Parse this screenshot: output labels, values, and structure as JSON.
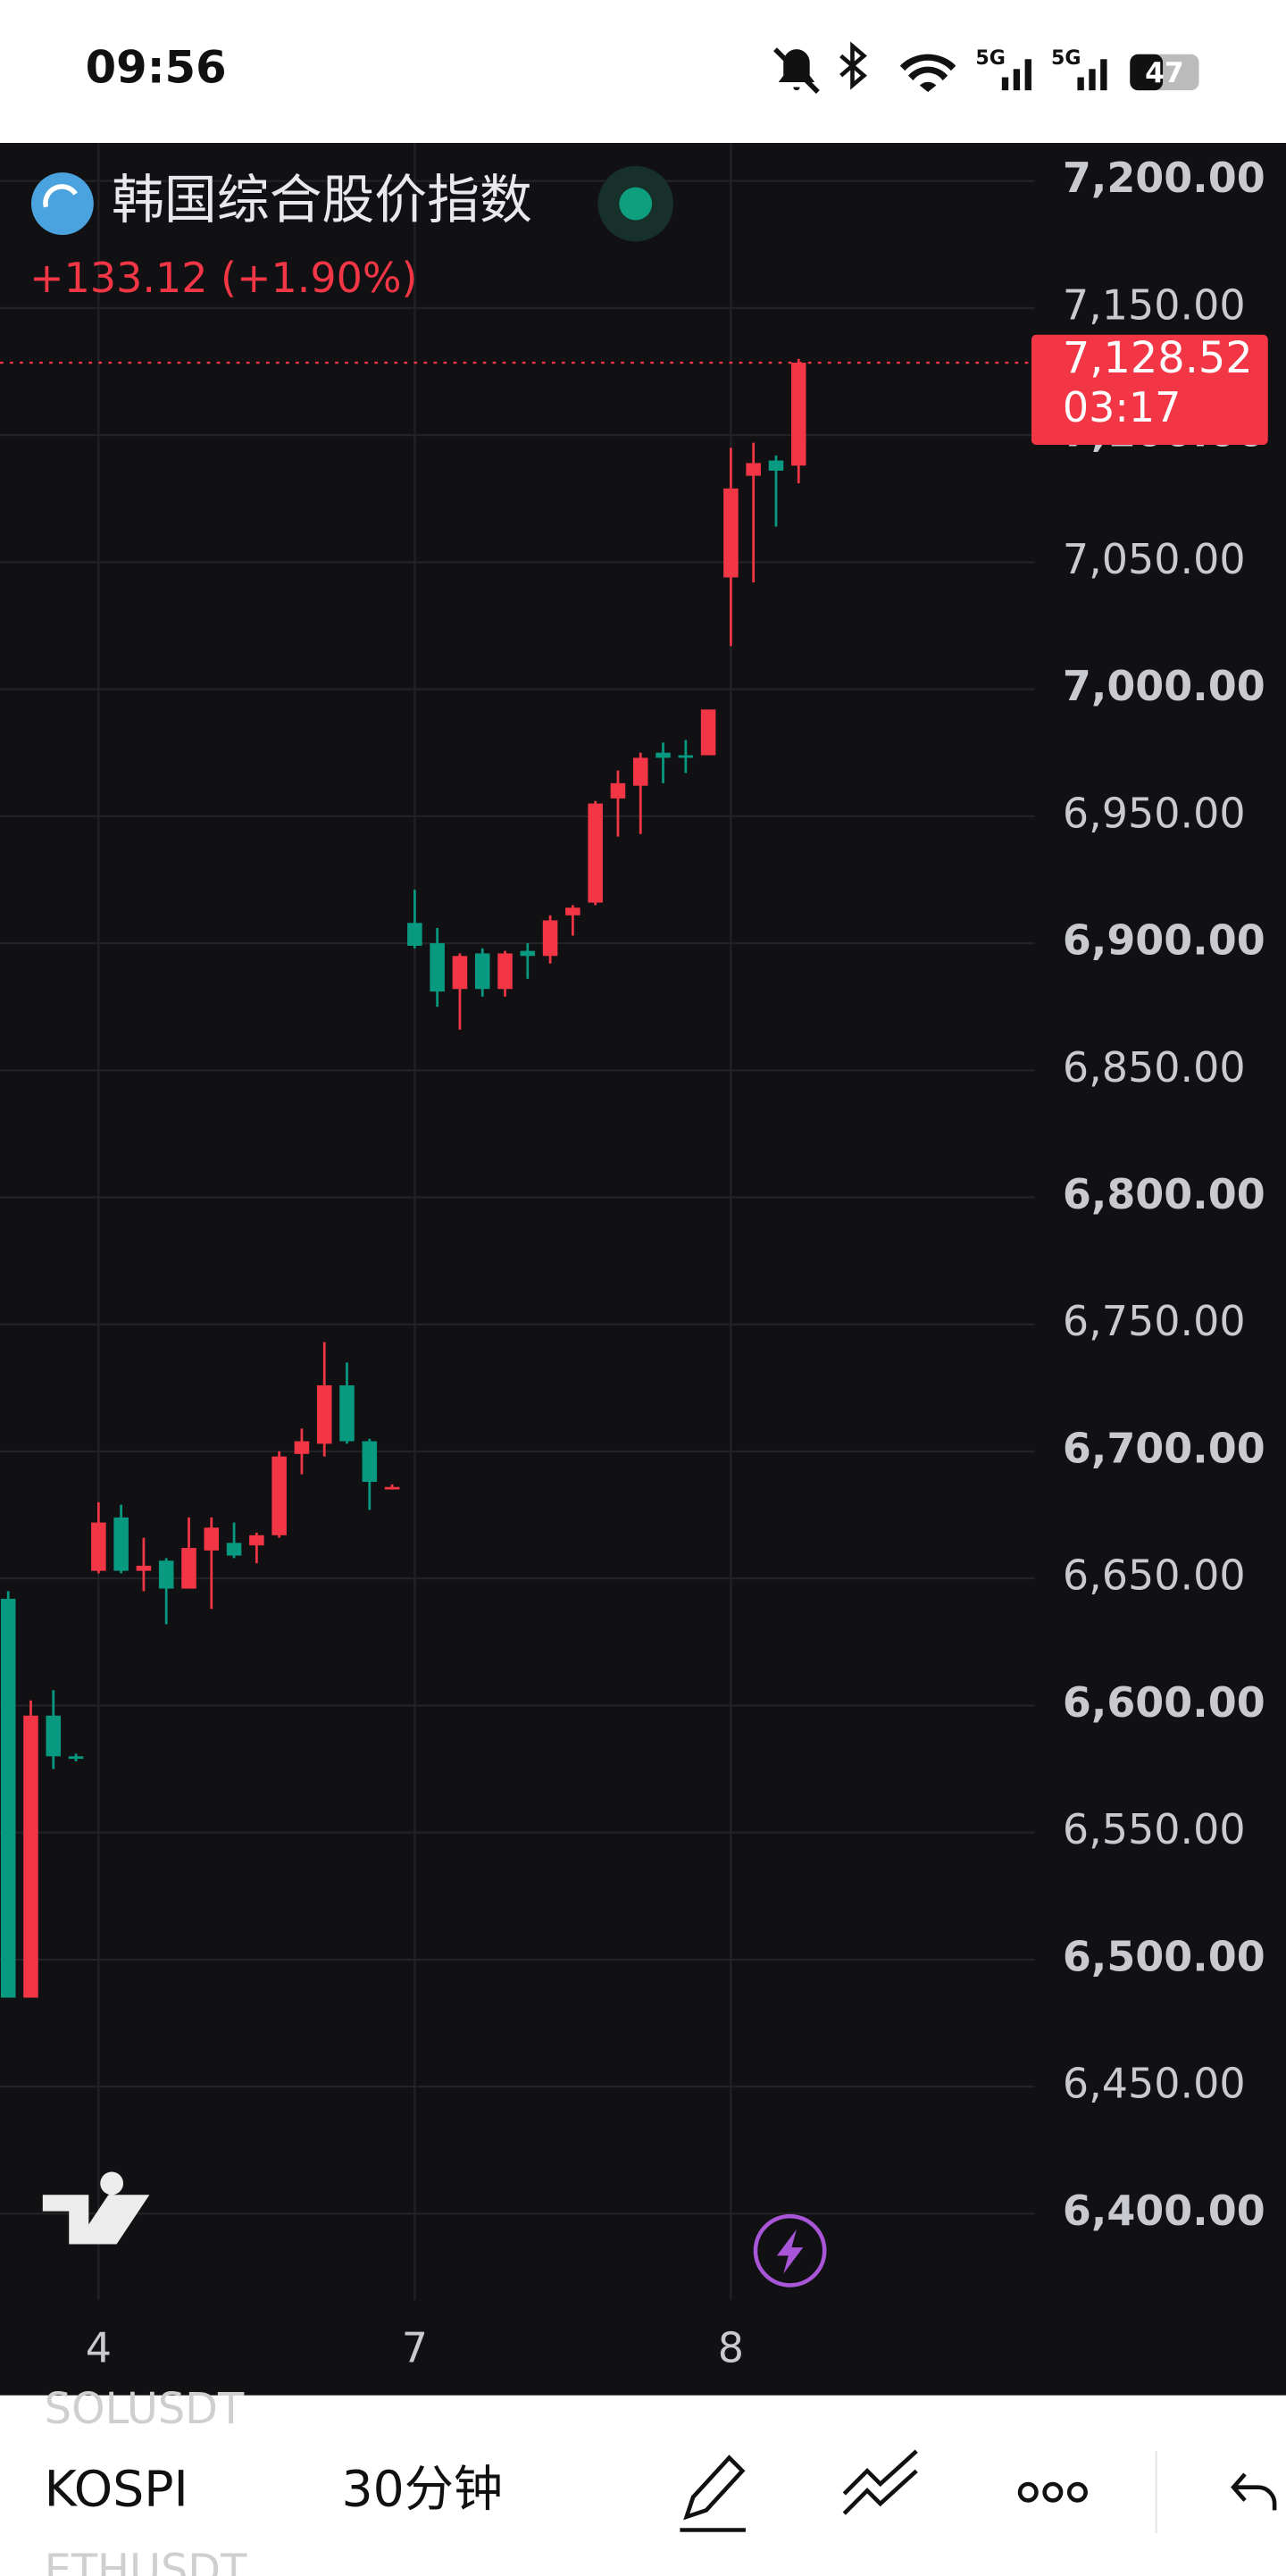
{
  "status_bar": {
    "time": "09:56",
    "network_1": "5G",
    "network_2": "5G",
    "battery": "47"
  },
  "header": {
    "title": "韩国综合股价指数",
    "change": "+133.12 (+1.90%)"
  },
  "chart_data": {
    "type": "candlestick",
    "categories": [
      null,
      null,
      null,
      null,
      "4",
      null,
      null,
      null,
      null,
      null,
      null,
      null,
      null,
      null,
      null,
      null,
      null,
      null,
      "7",
      null,
      null,
      null,
      null,
      null,
      null,
      null,
      null,
      null,
      null,
      null,
      null,
      null,
      "8",
      null,
      null,
      null
    ],
    "candles": {
      "open": [
        6642,
        6485,
        6596,
        6580,
        6653,
        6674,
        6653,
        6657,
        6646,
        6661,
        6664,
        6663,
        6667,
        6699,
        6703,
        6726,
        6704,
        6686,
        6908,
        6900,
        6882,
        6896,
        6882,
        6897,
        6895,
        6911,
        6916,
        6957,
        6962,
        6975,
        6974,
        6974,
        7044,
        7084,
        7090,
        7088
      ],
      "high": [
        6645,
        6602,
        6606,
        6581,
        6680,
        6679,
        6666,
        6658,
        6674,
        6674,
        6672,
        6668,
        6700,
        6709,
        6743,
        6735,
        6705,
        6687,
        6921,
        6906,
        6896,
        6898,
        6897,
        6900,
        6911,
        6915,
        6956,
        6968,
        6975,
        6979,
        6980,
        6992,
        7095,
        7097,
        7092,
        7130
      ],
      "low": [
        6485,
        6485,
        6575,
        6578,
        6652,
        6652,
        6645,
        6632,
        6646,
        6638,
        6658,
        6656,
        6666,
        6691,
        6698,
        6703,
        6677,
        6685,
        6898,
        6875,
        6866,
        6879,
        6879,
        6886,
        6892,
        6903,
        6915,
        6942,
        6943,
        6963,
        6967,
        6974,
        7017,
        7042,
        7064,
        7081
      ],
      "close": [
        6485,
        6596,
        6580,
        6579,
        6672,
        6653,
        6655,
        6646,
        6662,
        6670,
        6659,
        6667,
        6698,
        6704,
        6726,
        6704,
        6688,
        6686,
        6899,
        6881,
        6895,
        6882,
        6896,
        6895,
        6909,
        6914,
        6955,
        6963,
        6973,
        6973,
        6973,
        6992,
        7079,
        7089,
        7086,
        7128.52
      ]
    },
    "up_color": "#f23645",
    "down_color": "#089981",
    "ylim": [
      6366,
      7215
    ],
    "yticks": [
      {
        "value": 7200,
        "label": "7,200.00"
      },
      {
        "value": 7150,
        "label": "7,150.00"
      },
      {
        "value": 7100,
        "label": "7,100.00"
      },
      {
        "value": 7050,
        "label": "7,050.00"
      },
      {
        "value": 7000,
        "label": "7,000.00"
      },
      {
        "value": 6950,
        "label": "6,950.00"
      },
      {
        "value": 6900,
        "label": "6,900.00"
      },
      {
        "value": 6850,
        "label": "6,850.00"
      },
      {
        "value": 6800,
        "label": "6,800.00"
      },
      {
        "value": 6750,
        "label": "6,750.00"
      },
      {
        "value": 6700,
        "label": "6,700.00"
      },
      {
        "value": 6650,
        "label": "6,650.00"
      },
      {
        "value": 6600,
        "label": "6,600.00"
      },
      {
        "value": 6550,
        "label": "6,550.00"
      },
      {
        "value": 6500,
        "label": "6,500.00"
      },
      {
        "value": 6450,
        "label": "6,450.00"
      },
      {
        "value": 6400,
        "label": "6,400.00"
      }
    ],
    "grid": true,
    "last_price": {
      "value": 7128.52,
      "label": "7,128.52",
      "countdown": "03:17"
    }
  },
  "toolbar": {
    "symbol": "KOSPI",
    "interval": "30分钟",
    "watch_prev": "SOLUSDT",
    "watch_next": "ETHUSDT"
  }
}
